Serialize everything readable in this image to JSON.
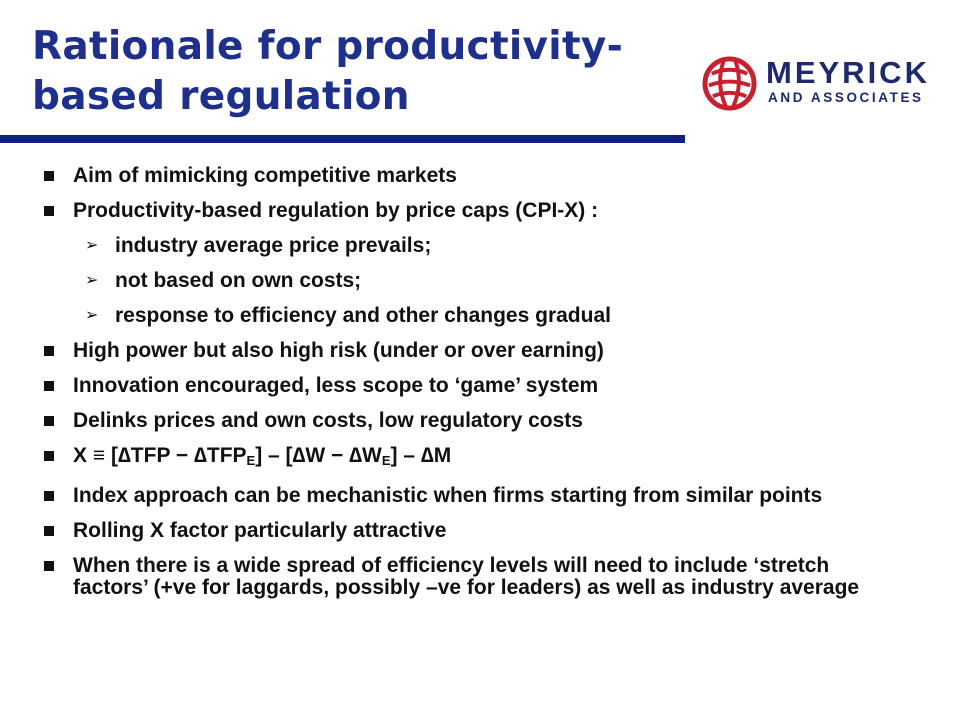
{
  "slide": {
    "title_line1": "Rationale for productivity-",
    "title_line2": "based regulation"
  },
  "logo": {
    "brand": "MEYRICK",
    "tagline": "AND ASSOCIATES",
    "mark_color": "#c8202f",
    "text_color": "#1f2a6e"
  },
  "colors": {
    "title": "#1f2f8c",
    "rule": "#0e1f86"
  },
  "bullets": [
    "Aim of mimicking competitive markets",
    "Productivity-based regulation by price caps (CPI-X) :",
    "industry average price prevails;",
    "not based on own costs;",
    "response to efficiency and other changes gradual",
    "High power but also high risk (under or over earning)",
    "Innovation encouraged, less scope to ‘game’ system",
    "Delinks prices and own costs, low regulatory costs",
    {
      "x": "X",
      "eq": " ≡ [",
      "dtfp": "∆TFP",
      "minus1": " − ",
      "dtfp_e": "∆TFP",
      "sub1": "E",
      "mid": "] – [",
      "dw": "∆W",
      "minus2": " − ",
      "dw_e": "∆W",
      "sub2": "E",
      "end": "] – ",
      "dm": "∆M"
    },
    "Index approach can be mechanistic when firms starting from similar points",
    "Rolling X factor particularly attractive",
    "When there is a wide spread of efficiency levels will need to include ‘stretch factors’ (+ve for laggards, possibly –ve for leaders) as well as industry average"
  ],
  "sub_arrow": "➢"
}
